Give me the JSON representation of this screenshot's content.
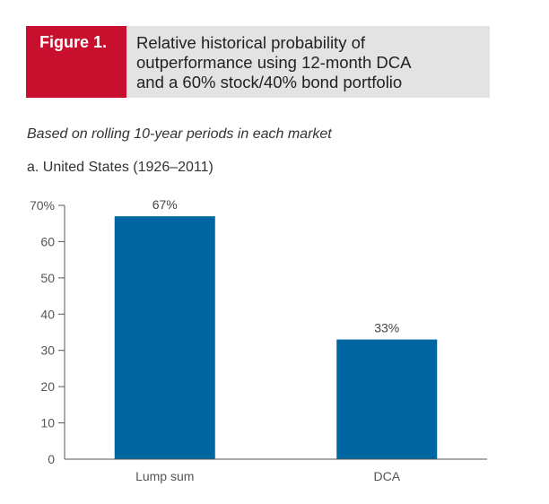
{
  "header": {
    "figure_label": "Figure 1.",
    "title_lines": [
      "Relative historical probability of",
      "outperformance using 12-month DCA",
      "and a 60% stock/40% bond portfolio"
    ]
  },
  "subtitle": "Based on rolling 10-year periods in each market",
  "panel_label": "a. United States (1926–2011)",
  "colors": {
    "accent": "#c8102e",
    "header_bg": "#e3e3e3",
    "bar": "#0066a1"
  },
  "chart_data": {
    "type": "bar",
    "categories": [
      "Lump sum",
      "DCA"
    ],
    "values": [
      67,
      33
    ],
    "data_labels": [
      "67%",
      "33%"
    ],
    "ylim": [
      0,
      70
    ],
    "y_ticks": [
      {
        "value": 0,
        "label": "0"
      },
      {
        "value": 10,
        "label": "10"
      },
      {
        "value": 20,
        "label": "20"
      },
      {
        "value": 30,
        "label": "30"
      },
      {
        "value": 40,
        "label": "40"
      },
      {
        "value": 50,
        "label": "50"
      },
      {
        "value": 60,
        "label": "60"
      },
      {
        "value": 70,
        "label": "70%"
      }
    ],
    "grid": false,
    "legend": "none"
  }
}
